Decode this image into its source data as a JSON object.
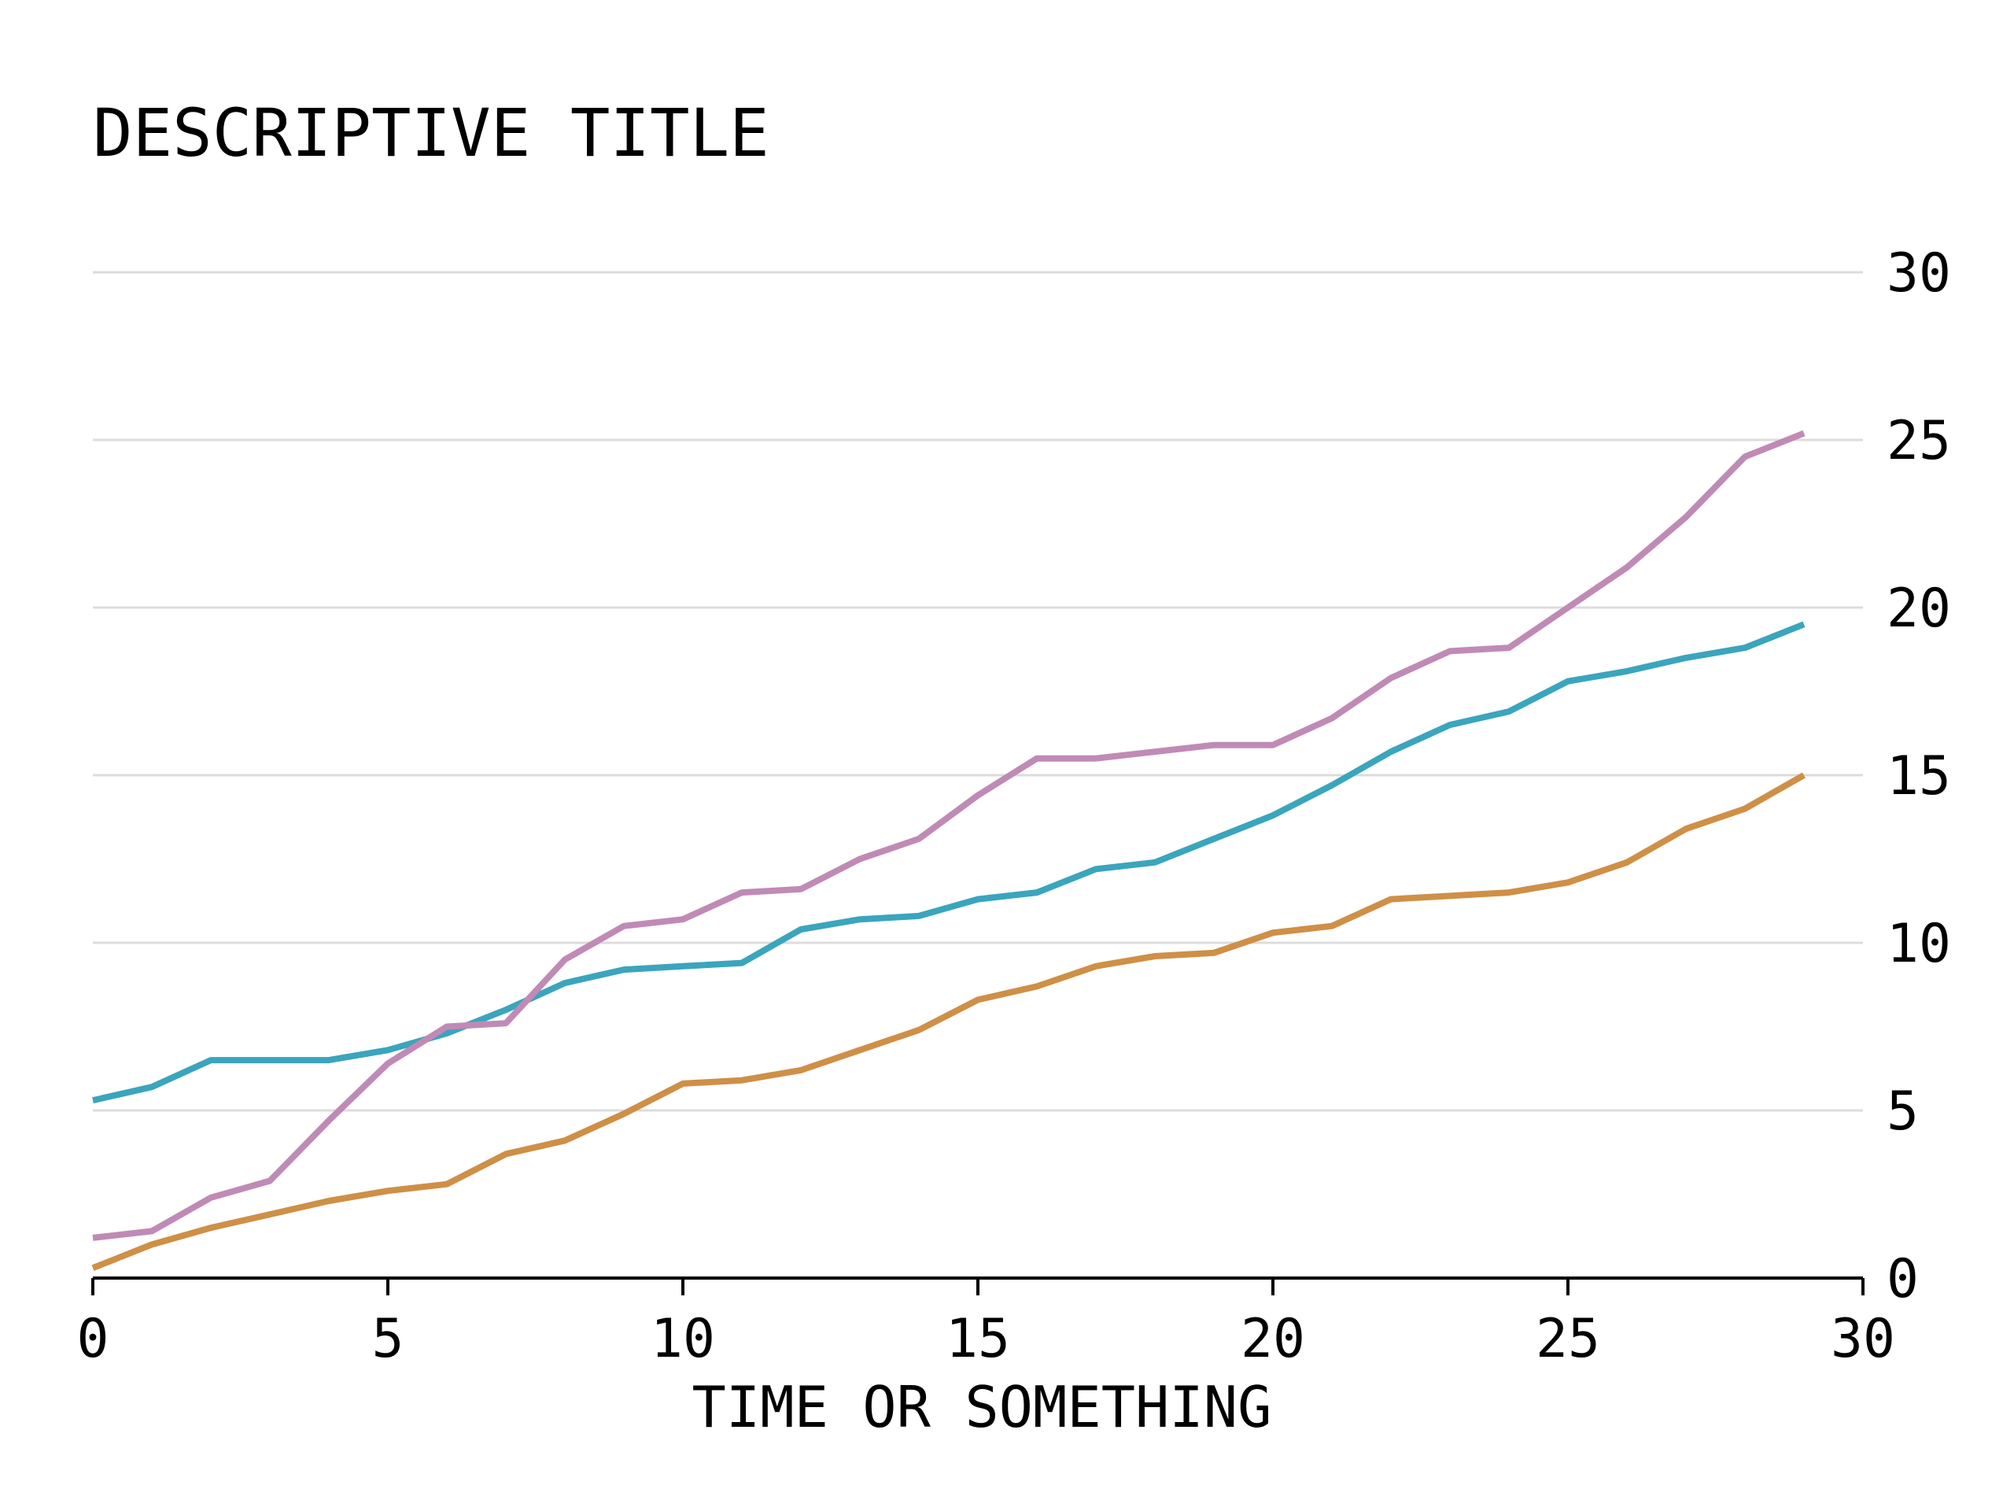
{
  "chart_data": {
    "type": "line",
    "title": "DESCRIPTIVE TITLE",
    "xlabel": "TIME OR SOMETHING",
    "ylabel": "",
    "xlim": [
      0,
      30
    ],
    "ylim": [
      0,
      30
    ],
    "xticks": [
      0,
      5,
      10,
      15,
      20,
      25,
      30
    ],
    "yticks": [
      0,
      5,
      10,
      15,
      20,
      25,
      30
    ],
    "y_axis_side": "right",
    "grid": "horizontal",
    "legend": "none",
    "x": [
      0,
      1,
      2,
      3,
      4,
      5,
      6,
      7,
      8,
      9,
      10,
      11,
      12,
      13,
      14,
      15,
      16,
      17,
      18,
      19,
      20,
      21,
      22,
      23,
      24,
      25,
      26,
      27,
      28,
      29
    ],
    "series": [
      {
        "color": "#3aa5bd",
        "values": [
          5.3,
          5.7,
          6.5,
          6.5,
          6.5,
          6.8,
          7.3,
          8.0,
          8.8,
          9.2,
          9.3,
          9.4,
          10.4,
          10.7,
          10.8,
          11.3,
          11.5,
          12.2,
          12.4,
          13.1,
          13.8,
          14.7,
          15.7,
          16.5,
          16.9,
          17.8,
          18.1,
          18.5,
          18.8,
          19.5
        ]
      },
      {
        "color": "#c08ab6",
        "values": [
          1.2,
          1.4,
          2.4,
          2.9,
          4.7,
          6.4,
          7.5,
          7.6,
          9.5,
          10.5,
          10.7,
          11.5,
          11.6,
          12.5,
          13.1,
          14.4,
          15.5,
          15.5,
          15.7,
          15.9,
          15.9,
          16.7,
          17.9,
          18.7,
          18.8,
          20.0,
          21.2,
          22.7,
          24.5,
          25.2
        ]
      },
      {
        "color": "#cf8f46",
        "values": [
          0.3,
          1.0,
          1.5,
          1.9,
          2.3,
          2.6,
          2.8,
          3.7,
          4.1,
          4.9,
          5.8,
          5.9,
          6.2,
          6.8,
          7.4,
          8.3,
          8.7,
          9.3,
          9.6,
          9.7,
          10.3,
          10.5,
          11.3,
          11.4,
          11.5,
          11.8,
          12.4,
          13.4,
          14.0,
          15.0
        ]
      }
    ]
  }
}
